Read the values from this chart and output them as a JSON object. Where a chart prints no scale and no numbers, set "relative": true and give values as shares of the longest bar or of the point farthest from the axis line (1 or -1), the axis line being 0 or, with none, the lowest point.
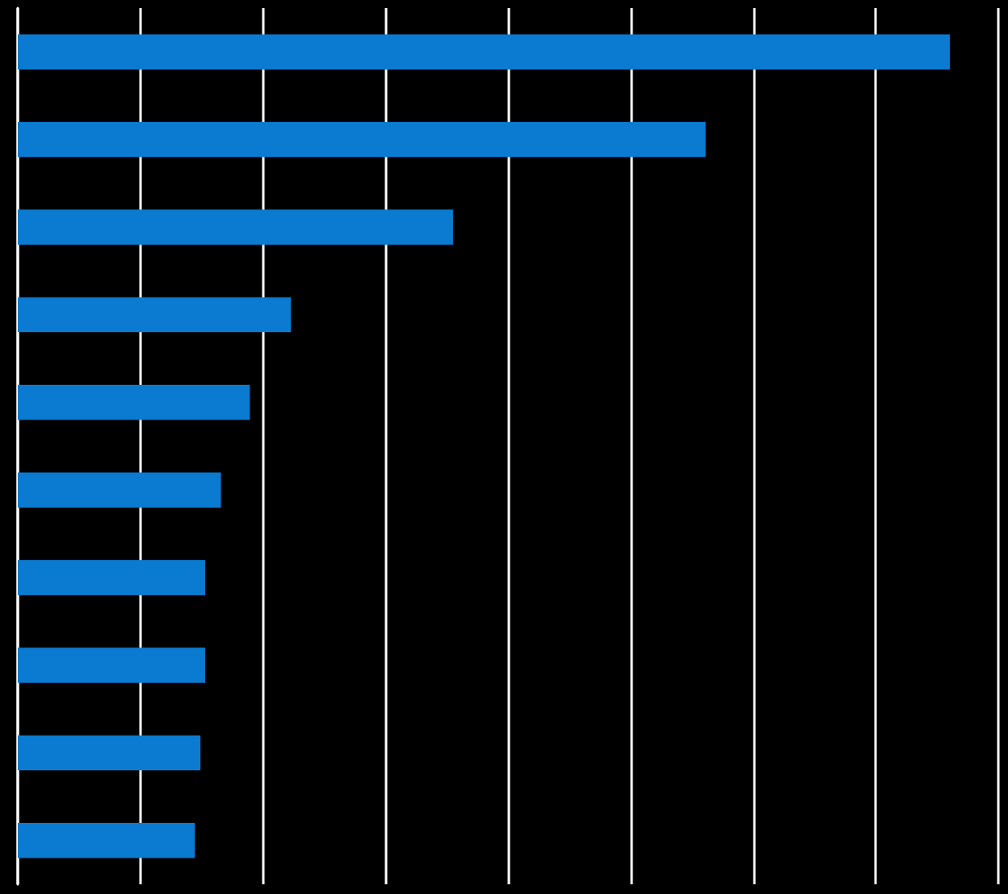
{
  "chart_data": {
    "type": "bar",
    "orientation": "horizontal",
    "relative": true,
    "grid": "x",
    "categories": [
      null,
      null,
      null,
      null,
      null,
      null,
      null,
      null,
      null,
      null
    ],
    "series": [
      {
        "color": "#0a7bd0",
        "values": [
          1,
          0.738,
          0.467,
          0.293,
          0.249,
          0.218,
          0.201,
          0.201,
          0.196,
          0.19
        ]
      }
    ]
  }
}
